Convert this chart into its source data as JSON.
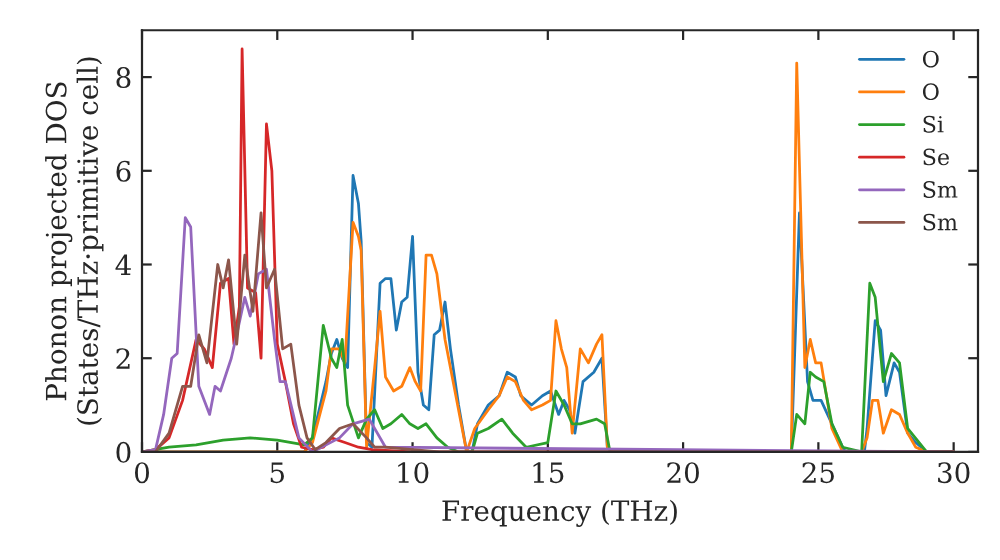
{
  "chart_data": {
    "type": "line",
    "xlabel": "Frequency (THz)",
    "ylabel": "Phonon projected DOS\n(States/THz·primitive cell)",
    "xlim": [
      0,
      30.9
    ],
    "ylim": [
      0,
      9
    ],
    "xticks": [
      0,
      5,
      10,
      15,
      20,
      25,
      30
    ],
    "yticks": [
      0,
      2,
      4,
      6,
      8
    ],
    "legend": "top right",
    "grid": false,
    "series": [
      {
        "name": "O",
        "color": "#1f77b4",
        "x": [
          0,
          6.0,
          6.3,
          6.8,
          7.0,
          7.2,
          7.4,
          7.6,
          7.8,
          8.0,
          8.1,
          8.3,
          8.5,
          8.8,
          9.0,
          9.2,
          9.4,
          9.6,
          9.8,
          10.0,
          10.2,
          10.4,
          10.6,
          10.8,
          11.0,
          11.2,
          11.4,
          11.7,
          12.0,
          12.2,
          12.4,
          12.8,
          13.2,
          13.5,
          13.8,
          14.0,
          14.4,
          14.8,
          15.1,
          15.4,
          15.6,
          15.8,
          16.0,
          16.3,
          16.7,
          17.0,
          17.2,
          17.4,
          24.0,
          24.3,
          24.6,
          24.8,
          25.1,
          25.5,
          25.9,
          26.0,
          26.7,
          26.8,
          27.1,
          27.3,
          27.5,
          27.8,
          28.0,
          28.3,
          28.6,
          29.0,
          30.0
        ],
        "values": [
          0,
          0,
          0.3,
          1.5,
          2.1,
          2.4,
          2.0,
          1.8,
          5.9,
          5.3,
          4.5,
          0.2,
          0.1,
          3.6,
          3.7,
          3.7,
          2.6,
          3.2,
          3.3,
          4.6,
          1.7,
          1.0,
          0.9,
          2.5,
          2.6,
          3.2,
          2.2,
          1.0,
          0,
          0,
          0.6,
          1.0,
          1.2,
          1.7,
          1.6,
          1.2,
          1.0,
          1.2,
          1.3,
          0.8,
          1.1,
          0.9,
          0.4,
          1.5,
          1.7,
          2.0,
          0.1,
          0,
          0,
          5.1,
          1.5,
          1.1,
          1.1,
          0.6,
          0.1,
          0,
          0,
          0.5,
          2.8,
          2.6,
          1.2,
          1.9,
          1.7,
          0.4,
          0.2,
          0,
          0
        ]
      },
      {
        "name": "O",
        "color": "#ff7f0e",
        "x": [
          0,
          6.0,
          6.3,
          6.8,
          7.0,
          7.3,
          7.5,
          7.8,
          8.0,
          8.1,
          8.3,
          8.6,
          8.8,
          9.0,
          9.3,
          9.6,
          9.9,
          10.1,
          10.3,
          10.5,
          10.7,
          10.9,
          11.2,
          11.7,
          12.0,
          12.3,
          12.8,
          13.2,
          13.5,
          13.8,
          14.1,
          14.4,
          14.8,
          15.1,
          15.3,
          15.5,
          15.7,
          15.9,
          16.2,
          16.5,
          16.8,
          17.0,
          17.2,
          17.4,
          24.0,
          24.2,
          24.5,
          24.7,
          24.9,
          25.1,
          25.5,
          25.9,
          26.6,
          26.8,
          27.0,
          27.2,
          27.4,
          27.7,
          28.0,
          28.3,
          28.6,
          29.0,
          30.0
        ],
        "values": [
          0,
          0,
          0.2,
          1.3,
          2.2,
          2.2,
          1.9,
          4.9,
          4.6,
          4.3,
          0.1,
          1.8,
          3.0,
          1.6,
          1.3,
          1.4,
          1.8,
          1.5,
          1.3,
          4.2,
          4.2,
          3.8,
          2.4,
          0.9,
          0,
          0.5,
          0.9,
          1.2,
          1.6,
          1.5,
          1.1,
          0.9,
          1.0,
          1.1,
          2.8,
          2.2,
          1.8,
          0.4,
          2.2,
          1.9,
          2.3,
          2.5,
          0.1,
          0,
          0,
          8.3,
          1.8,
          2.4,
          1.9,
          1.9,
          0.5,
          0,
          0,
          0.3,
          1.1,
          1.1,
          0.4,
          0.9,
          0.8,
          0.4,
          0.1,
          0,
          0
        ]
      },
      {
        "name": "Si",
        "color": "#2ca02c",
        "x": [
          0,
          1.0,
          2.0,
          3.0,
          4.0,
          5.0,
          6.0,
          6.3,
          6.7,
          7.0,
          7.2,
          7.4,
          7.6,
          8.0,
          8.3,
          8.6,
          8.9,
          9.2,
          9.6,
          9.9,
          10.2,
          10.5,
          10.9,
          11.3,
          11.7,
          12.2,
          12.4,
          12.8,
          13.3,
          13.7,
          14.2,
          15.0,
          15.3,
          15.6,
          15.9,
          16.2,
          16.8,
          17.1,
          17.3,
          24.0,
          24.2,
          24.5,
          24.7,
          24.9,
          25.2,
          25.5,
          25.9,
          26.6,
          26.9,
          27.1,
          27.4,
          27.7,
          28.0,
          28.3,
          29.0,
          30.0
        ],
        "values": [
          0,
          0.1,
          0.15,
          0.25,
          0.3,
          0.25,
          0.15,
          0.3,
          2.7,
          2.0,
          1.8,
          2.4,
          1.0,
          0.3,
          0.7,
          0.9,
          0.5,
          0.6,
          0.8,
          0.6,
          0.5,
          0.6,
          0.3,
          0.1,
          0,
          0,
          0.4,
          0.5,
          0.7,
          0.4,
          0.1,
          0.2,
          1.3,
          1.0,
          0.6,
          0.6,
          0.7,
          0.6,
          0,
          0,
          0.8,
          0.6,
          1.7,
          1.6,
          1.5,
          0.6,
          0.1,
          0,
          3.6,
          3.3,
          1.5,
          2.1,
          1.9,
          0.5,
          0,
          0
        ]
      },
      {
        "name": "Se",
        "color": "#d62728",
        "x": [
          0,
          0.5,
          1.0,
          1.5,
          2.0,
          2.3,
          2.6,
          2.9,
          3.2,
          3.4,
          3.6,
          3.7,
          3.9,
          4.2,
          4.4,
          4.6,
          4.8,
          5.0,
          5.3,
          5.6,
          5.9,
          6.3,
          6.7,
          7.0,
          7.5,
          8.0,
          8.5,
          10.0,
          30.0
        ],
        "values": [
          0,
          0.05,
          0.3,
          1.1,
          2.4,
          2.2,
          1.8,
          3.6,
          3.7,
          2.3,
          3.1,
          8.6,
          3.5,
          3.4,
          2.0,
          7.0,
          6.0,
          2.3,
          1.5,
          0.6,
          0.1,
          0.05,
          0.1,
          0.3,
          0.2,
          0.1,
          0.05,
          0,
          0
        ]
      },
      {
        "name": "Sm",
        "color": "#9467bd",
        "x": [
          0,
          0.5,
          0.8,
          1.1,
          1.3,
          1.6,
          1.8,
          2.1,
          2.5,
          2.7,
          2.9,
          3.3,
          3.5,
          3.8,
          4.0,
          4.3,
          4.6,
          4.9,
          5.1,
          5.3,
          5.8,
          6.3,
          7.3,
          7.8,
          8.4,
          9.0,
          30.0
        ],
        "values": [
          0,
          0.05,
          0.8,
          2.0,
          2.1,
          5.0,
          4.8,
          1.4,
          0.8,
          1.4,
          1.3,
          2.0,
          2.5,
          3.3,
          2.9,
          3.8,
          3.9,
          2.4,
          1.5,
          1.5,
          0.3,
          0,
          0.3,
          0.6,
          0.7,
          0.1,
          0
        ]
      },
      {
        "name": "Sm",
        "color": "#8c564b",
        "x": [
          0,
          0.5,
          1.0,
          1.5,
          1.8,
          2.1,
          2.4,
          2.8,
          3.0,
          3.2,
          3.5,
          3.8,
          4.1,
          4.4,
          4.6,
          4.9,
          5.2,
          5.5,
          5.8,
          6.1,
          6.4,
          6.8,
          7.3,
          7.8,
          8.3,
          8.6,
          9.0,
          10.0,
          11.0,
          30.0
        ],
        "values": [
          0,
          0,
          0.4,
          1.4,
          1.4,
          2.5,
          1.9,
          4.0,
          3.5,
          4.1,
          2.3,
          4.2,
          3.0,
          5.1,
          3.5,
          3.9,
          2.2,
          2.3,
          1.0,
          0.3,
          0.05,
          0.2,
          0.5,
          0.6,
          0.3,
          0.1,
          0.1,
          0.05,
          0,
          0
        ]
      }
    ]
  }
}
